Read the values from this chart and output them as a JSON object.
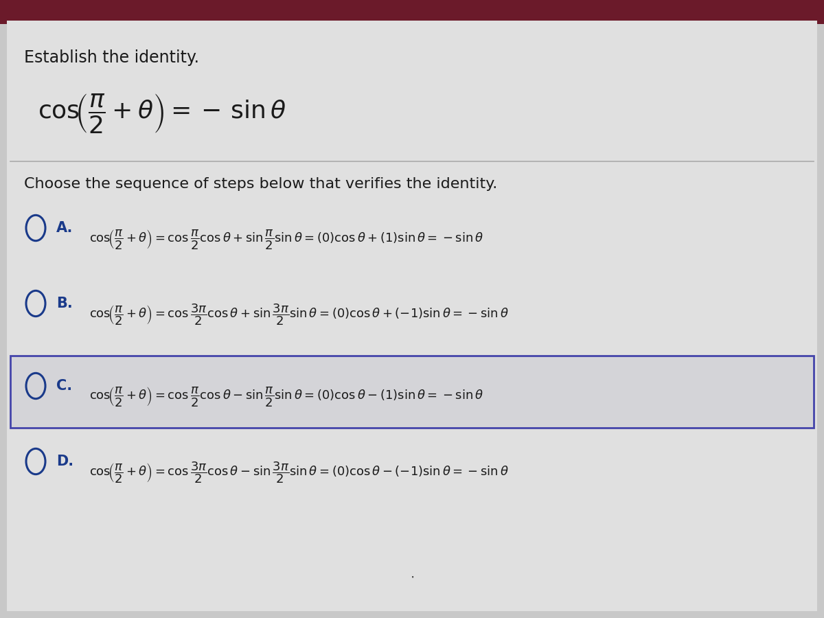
{
  "bg_top_color": "#6b1a2a",
  "bg_color": "#c8c8c8",
  "panel_color": "#e0e0e0",
  "text_color": "#1a1a1a",
  "blue_color": "#1a3a8a",
  "title": "Establish the identity.",
  "choose_text": "Choose the sequence of steps below that verifies the identity.",
  "highlight_border": "#4444aa",
  "highlight_fill": "#d4d4d8",
  "divider_color": "#aaaaaa",
  "options": [
    {
      "label": "A.",
      "highlighted": false
    },
    {
      "label": "B.",
      "highlighted": false
    },
    {
      "label": "C.",
      "highlighted": true
    },
    {
      "label": "D.",
      "highlighted": false
    }
  ]
}
